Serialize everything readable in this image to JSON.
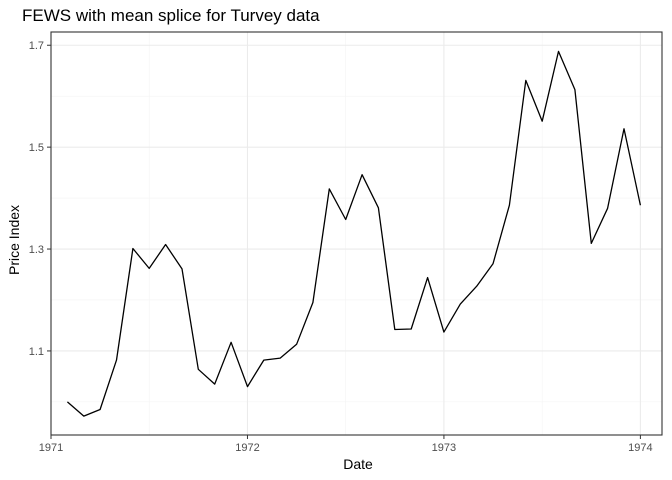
{
  "chart_data": {
    "type": "line",
    "title": "FEWS with mean splice for Turvey data",
    "xlabel": "Date",
    "ylabel": "Price Index",
    "xlim": [
      1971.0,
      1974.11
    ],
    "ylim": [
      0.935,
      1.726
    ],
    "x_ticks": [
      1971,
      1972,
      1973,
      1974
    ],
    "x_tick_labels": [
      "1971",
      "1972",
      "1973",
      "1974"
    ],
    "y_ticks": [
      1.1,
      1.3,
      1.5,
      1.7
    ],
    "y_tick_labels": [
      "1.1",
      "1.3",
      "1.5",
      "1.7"
    ],
    "grid": true,
    "x": [
      1971.0833,
      1971.1667,
      1971.25,
      1971.3333,
      1971.4167,
      1971.5,
      1971.5833,
      1971.6667,
      1971.75,
      1971.8333,
      1971.9167,
      1972.0,
      1972.0833,
      1972.1667,
      1972.25,
      1972.3333,
      1972.4167,
      1972.5,
      1972.5833,
      1972.6667,
      1972.75,
      1972.8333,
      1972.9167,
      1973.0,
      1973.0833,
      1973.1667,
      1973.25,
      1973.3333,
      1973.4167,
      1973.5,
      1973.5833,
      1973.6667,
      1973.75,
      1973.8333,
      1973.9167,
      1974.0
    ],
    "series": [
      {
        "values": [
          1.0,
          0.972,
          0.985,
          1.082,
          1.301,
          1.262,
          1.309,
          1.261,
          1.064,
          1.035,
          1.117,
          1.03,
          1.082,
          1.086,
          1.113,
          1.195,
          1.418,
          1.358,
          1.446,
          1.381,
          1.142,
          1.143,
          1.244,
          1.137,
          1.192,
          1.227,
          1.271,
          1.386,
          1.631,
          1.551,
          1.688,
          1.613,
          1.311,
          1.38,
          1.536,
          1.386
        ]
      }
    ]
  }
}
